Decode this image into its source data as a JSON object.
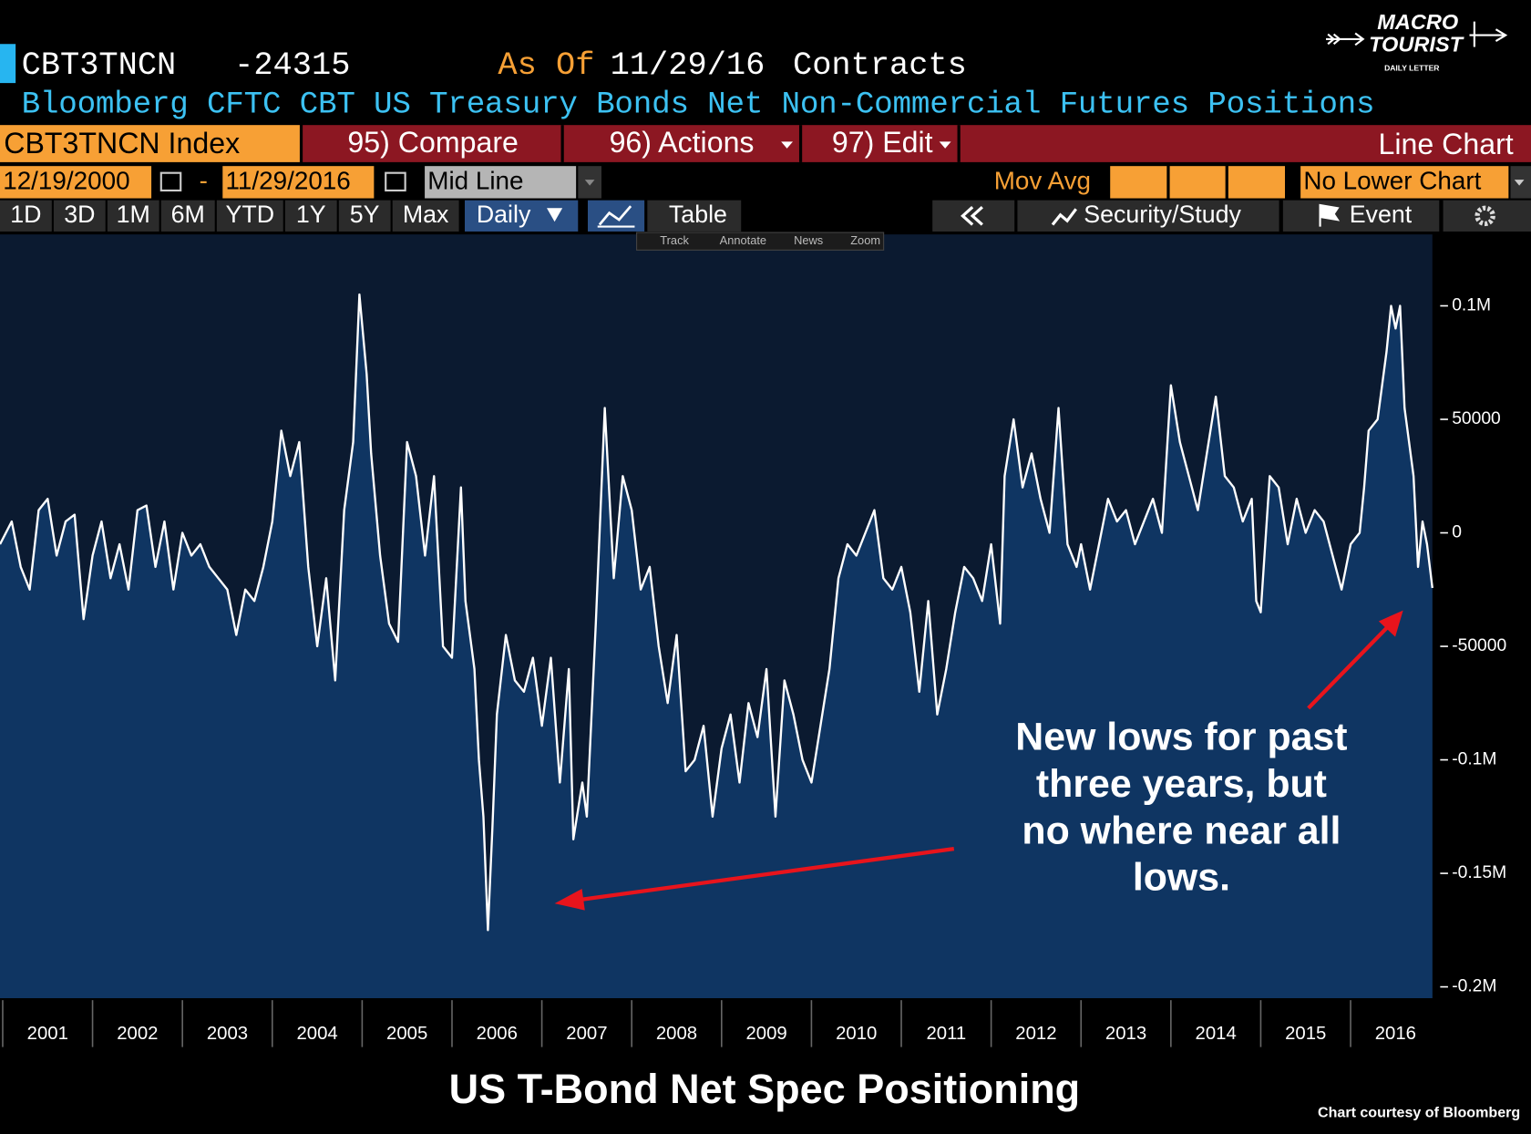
{
  "header": {
    "ticker": "CBT3TNCN",
    "last": "-24315",
    "as_of_label": "As Of",
    "as_of": "11/29/16",
    "units": "Contracts",
    "description": "Bloomberg CFTC CBT US Treasury Bonds Net Non-Commercial Futures Positions"
  },
  "toolbar": {
    "security": "CBT3TNCN Index",
    "menu": [
      "95) Compare",
      "96) Actions",
      "97) Edit"
    ],
    "chart_type": "Line Chart",
    "start_date": "12/19/2000",
    "date_separator": "-",
    "end_date": "11/29/2016",
    "line_style": "Mid Line",
    "mov_avg": "Mov Avg",
    "lower_chart": "No Lower Chart",
    "ranges": [
      "1D",
      "3D",
      "1M",
      "6M",
      "YTD",
      "1Y",
      "5Y",
      "Max"
    ],
    "frequency": "Daily",
    "table": "Table",
    "study": "Security/Study",
    "event": "Event",
    "tools": [
      "Track",
      "Annotate",
      "News",
      "Zoom"
    ]
  },
  "logo": {
    "line1": "MACRO",
    "line2": "TOURIST",
    "tagline": "DAILY LETTER"
  },
  "chart_data": {
    "type": "line",
    "title": "US T-Bond Net Spec Positioning",
    "source": "Chart courtesy of Bloomberg",
    "annotation": [
      "New lows for past",
      "three years, but",
      "no where near all",
      "lows."
    ],
    "color": "#ffffff",
    "area_color": "#0f3562",
    "x": [
      2000.97,
      2001.1,
      2001.2,
      2001.3,
      2001.4,
      2001.5,
      2001.6,
      2001.7,
      2001.8,
      2001.9,
      2002.0,
      2002.1,
      2002.2,
      2002.3,
      2002.4,
      2002.5,
      2002.6,
      2002.7,
      2002.8,
      2002.9,
      2003.0,
      2003.1,
      2003.2,
      2003.3,
      2003.4,
      2003.5,
      2003.6,
      2003.7,
      2003.8,
      2003.9,
      2004.0,
      2004.1,
      2004.2,
      2004.3,
      2004.4,
      2004.5,
      2004.6,
      2004.7,
      2004.8,
      2004.9,
      2004.97,
      2005.05,
      2005.1,
      2005.2,
      2005.3,
      2005.4,
      2005.5,
      2005.6,
      2005.7,
      2005.8,
      2005.9,
      2006.0,
      2006.1,
      2006.15,
      2006.25,
      2006.3,
      2006.35,
      2006.4,
      2006.45,
      2006.5,
      2006.6,
      2006.7,
      2006.8,
      2006.9,
      2007.0,
      2007.1,
      2007.2,
      2007.3,
      2007.35,
      2007.45,
      2007.5,
      2007.6,
      2007.7,
      2007.8,
      2007.9,
      2008.0,
      2008.1,
      2008.2,
      2008.3,
      2008.4,
      2008.5,
      2008.6,
      2008.7,
      2008.8,
      2008.9,
      2009.0,
      2009.1,
      2009.2,
      2009.3,
      2009.4,
      2009.5,
      2009.6,
      2009.7,
      2009.8,
      2009.9,
      2010.0,
      2010.1,
      2010.2,
      2010.3,
      2010.4,
      2010.5,
      2010.6,
      2010.7,
      2010.8,
      2010.9,
      2011.0,
      2011.1,
      2011.2,
      2011.3,
      2011.4,
      2011.5,
      2011.6,
      2011.7,
      2011.8,
      2011.9,
      2012.0,
      2012.1,
      2012.15,
      2012.25,
      2012.35,
      2012.45,
      2012.55,
      2012.65,
      2012.75,
      2012.85,
      2012.95,
      2013.0,
      2013.1,
      2013.2,
      2013.3,
      2013.4,
      2013.5,
      2013.6,
      2013.7,
      2013.8,
      2013.9,
      2014.0,
      2014.1,
      2014.2,
      2014.3,
      2014.4,
      2014.5,
      2014.6,
      2014.7,
      2014.8,
      2014.9,
      2014.95,
      2015.0,
      2015.1,
      2015.2,
      2015.3,
      2015.4,
      2015.5,
      2015.6,
      2015.7,
      2015.8,
      2015.9,
      2016.0,
      2016.1,
      2016.15,
      2016.2,
      2016.3,
      2016.4,
      2016.45,
      2016.5,
      2016.55,
      2016.6,
      2016.7,
      2016.75,
      2016.8,
      2016.85,
      2016.91
    ],
    "values": [
      -5000,
      5000,
      -15000,
      -25000,
      10000,
      15000,
      -10000,
      5000,
      8000,
      -38000,
      -10000,
      5000,
      -20000,
      -5000,
      -25000,
      10000,
      12000,
      -15000,
      5000,
      -25000,
      0,
      -10000,
      -5000,
      -15000,
      -20000,
      -25000,
      -45000,
      -25000,
      -30000,
      -15000,
      5000,
      45000,
      25000,
      40000,
      -15000,
      -50000,
      -20000,
      -65000,
      10000,
      40000,
      105000,
      70000,
      35000,
      -10000,
      -40000,
      -48000,
      40000,
      25000,
      -10000,
      25000,
      -50000,
      -55000,
      20000,
      -30000,
      -60000,
      -100000,
      -125000,
      -175000,
      -130000,
      -80000,
      -45000,
      -65000,
      -70000,
      -55000,
      -85000,
      -55000,
      -110000,
      -60000,
      -135000,
      -110000,
      -125000,
      -40000,
      55000,
      -20000,
      25000,
      10000,
      -25000,
      -15000,
      -50000,
      -75000,
      -45000,
      -105000,
      -100000,
      -85000,
      -125000,
      -95000,
      -80000,
      -110000,
      -75000,
      -90000,
      -60000,
      -125000,
      -65000,
      -80000,
      -100000,
      -110000,
      -85000,
      -60000,
      -20000,
      -5000,
      -10000,
      0,
      10000,
      -20000,
      -25000,
      -15000,
      -35000,
      -70000,
      -30000,
      -80000,
      -60000,
      -35000,
      -15000,
      -20000,
      -30000,
      -5000,
      -40000,
      25000,
      50000,
      20000,
      35000,
      15000,
      0,
      55000,
      -5000,
      -15000,
      -5000,
      -25000,
      -5000,
      15000,
      5000,
      10000,
      -5000,
      5000,
      15000,
      0,
      65000,
      40000,
      25000,
      10000,
      35000,
      60000,
      25000,
      20000,
      5000,
      15000,
      -30000,
      -35000,
      25000,
      20000,
      -5000,
      15000,
      0,
      10000,
      5000,
      -10000,
      -25000,
      -5000,
      0,
      20000,
      45000,
      50000,
      80000,
      100000,
      90000,
      100000,
      55000,
      25000,
      -15000,
      5000,
      -5000,
      -24315
    ],
    "xlim": [
      2000.97,
      2016.91
    ],
    "xticks": [
      2001,
      2002,
      2003,
      2004,
      2005,
      2006,
      2007,
      2008,
      2009,
      2010,
      2011,
      2012,
      2013,
      2014,
      2015,
      2016
    ],
    "ylim": [
      -205000,
      125000
    ],
    "yticks": [
      {
        "value": 100000,
        "label": "0.1M"
      },
      50000,
      0,
      -50000,
      {
        "value": -100000,
        "label": "-0.1M"
      },
      {
        "value": -150000,
        "label": "-0.15M"
      },
      {
        "value": -200000,
        "label": "-0.2M"
      }
    ]
  }
}
